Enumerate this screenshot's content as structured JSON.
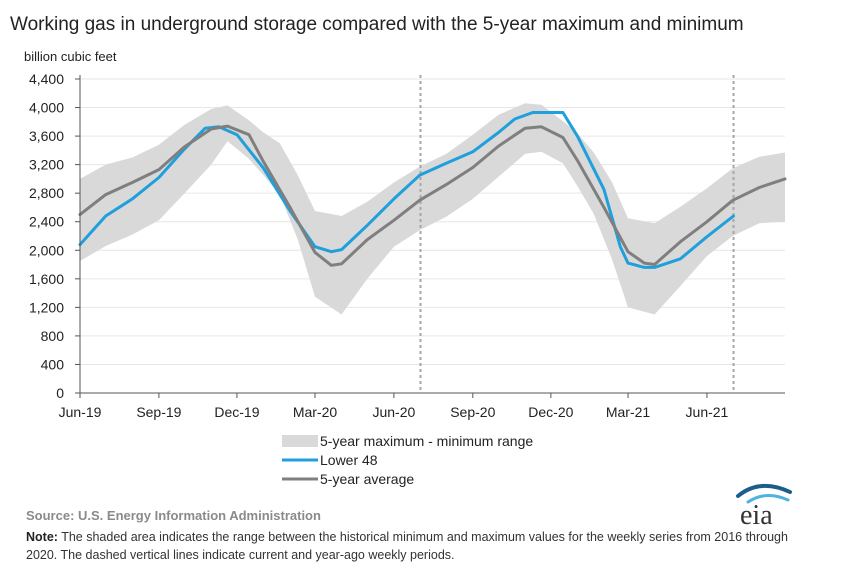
{
  "title": "Working gas in underground storage compared with the 5-year maximum and minimum",
  "source": "Source:  U.S. Energy Information Administration",
  "note_label": "Note:",
  "note_text": " The shaded area indicates the range between the historical minimum and maximum values for the weekly series from 2016 through 2020. The dashed vertical lines indicate current and year-ago weekly periods.",
  "logo_text": "eia",
  "colors": {
    "range": "#d9d9d9",
    "lower48": "#1f9fdc",
    "average": "#7f7f7f",
    "dashed": "#a6a6a6",
    "axis": "#555555"
  },
  "chart_data": {
    "type": "area",
    "title": "Working gas in underground storage compared with the 5-year maximum and minimum",
    "ylabel": "billion cubic feet",
    "xlabel": "",
    "ylim": [
      0,
      4400
    ],
    "yticks": [
      0,
      400,
      800,
      1200,
      1600,
      2000,
      2400,
      2800,
      3200,
      3600,
      4000,
      4400
    ],
    "xlim": [
      "2019-06-01",
      "2021-08-31"
    ],
    "xticks": [
      {
        "label": "Jun-19",
        "date": "2019-06-01"
      },
      {
        "label": "Sep-19",
        "date": "2019-09-01"
      },
      {
        "label": "Dec-19",
        "date": "2019-12-01"
      },
      {
        "label": "Mar-20",
        "date": "2020-03-01"
      },
      {
        "label": "Jun-20",
        "date": "2020-06-01"
      },
      {
        "label": "Sep-20",
        "date": "2020-09-01"
      },
      {
        "label": "Dec-20",
        "date": "2020-12-01"
      },
      {
        "label": "Mar-21",
        "date": "2021-03-01"
      },
      {
        "label": "Jun-21",
        "date": "2021-06-01"
      }
    ],
    "grid": true,
    "legend_position": "bottom",
    "dashed_lines": [
      "2020-07-02",
      "2021-07-02"
    ],
    "series": [
      {
        "name": "5-year maximum - minimum range",
        "kind": "band",
        "x": [
          "2019-06-01",
          "2019-07-01",
          "2019-08-01",
          "2019-09-01",
          "2019-10-01",
          "2019-11-01",
          "2019-11-20",
          "2019-12-15",
          "2020-01-01",
          "2020-01-20",
          "2020-02-10",
          "2020-03-01",
          "2020-04-01",
          "2020-05-01",
          "2020-06-01",
          "2020-07-01",
          "2020-08-01",
          "2020-09-01",
          "2020-10-01",
          "2020-11-01",
          "2020-11-20",
          "2020-12-15",
          "2021-01-01",
          "2021-01-20",
          "2021-02-10",
          "2021-03-01",
          "2021-04-01",
          "2021-05-01",
          "2021-06-01",
          "2021-07-01",
          "2021-08-01",
          "2021-08-31"
        ],
        "max": [
          3000,
          3200,
          3300,
          3480,
          3760,
          3980,
          4030,
          3820,
          3650,
          3500,
          3050,
          2550,
          2480,
          2680,
          2950,
          3170,
          3350,
          3620,
          3900,
          4060,
          4040,
          3810,
          3640,
          3370,
          2960,
          2450,
          2380,
          2610,
          2870,
          3150,
          3310,
          3370
        ],
        "min": [
          1850,
          2060,
          2220,
          2420,
          2800,
          3200,
          3530,
          3280,
          3050,
          2780,
          2150,
          1350,
          1100,
          1600,
          2050,
          2280,
          2470,
          2720,
          3030,
          3350,
          3380,
          3220,
          2900,
          2510,
          1880,
          1200,
          1100,
          1500,
          1920,
          2200,
          2380,
          2400
        ]
      },
      {
        "name": "Lower 48",
        "kind": "line",
        "x": [
          "2019-06-01",
          "2019-07-01",
          "2019-08-01",
          "2019-09-01",
          "2019-10-01",
          "2019-10-25",
          "2019-11-10",
          "2019-12-01",
          "2020-01-01",
          "2020-02-01",
          "2020-03-01",
          "2020-03-20",
          "2020-04-01",
          "2020-05-01",
          "2020-06-01",
          "2020-07-01",
          "2020-08-01",
          "2020-09-01",
          "2020-10-01",
          "2020-10-20",
          "2020-11-10",
          "2020-11-25",
          "2020-12-15",
          "2021-01-01",
          "2021-02-01",
          "2021-02-20",
          "2021-03-01",
          "2021-03-20",
          "2021-04-01",
          "2021-05-01",
          "2021-06-01",
          "2021-07-02"
        ],
        "y": [
          2080,
          2480,
          2720,
          3020,
          3420,
          3710,
          3730,
          3620,
          3150,
          2550,
          2050,
          1980,
          2010,
          2350,
          2720,
          3050,
          3220,
          3380,
          3650,
          3840,
          3930,
          3930,
          3930,
          3600,
          2850,
          2050,
          1820,
          1760,
          1760,
          1880,
          2190,
          2480
        ]
      },
      {
        "name": "5-year average",
        "kind": "line",
        "x": [
          "2019-06-01",
          "2019-07-01",
          "2019-08-01",
          "2019-09-01",
          "2019-10-01",
          "2019-11-01",
          "2019-11-20",
          "2019-12-15",
          "2020-01-01",
          "2020-02-01",
          "2020-03-01",
          "2020-03-20",
          "2020-04-01",
          "2020-05-01",
          "2020-06-01",
          "2020-07-01",
          "2020-08-01",
          "2020-09-01",
          "2020-10-01",
          "2020-11-01",
          "2020-11-20",
          "2020-12-15",
          "2021-01-01",
          "2021-02-01",
          "2021-03-01",
          "2021-03-20",
          "2021-04-01",
          "2021-05-01",
          "2021-06-01",
          "2021-07-01",
          "2021-08-01",
          "2021-08-31"
        ],
        "y": [
          2500,
          2780,
          2950,
          3130,
          3450,
          3700,
          3740,
          3620,
          3240,
          2600,
          1970,
          1790,
          1810,
          2150,
          2420,
          2700,
          2920,
          3160,
          3460,
          3710,
          3730,
          3580,
          3260,
          2600,
          1980,
          1820,
          1800,
          2120,
          2400,
          2700,
          2880,
          3000
        ]
      }
    ]
  }
}
